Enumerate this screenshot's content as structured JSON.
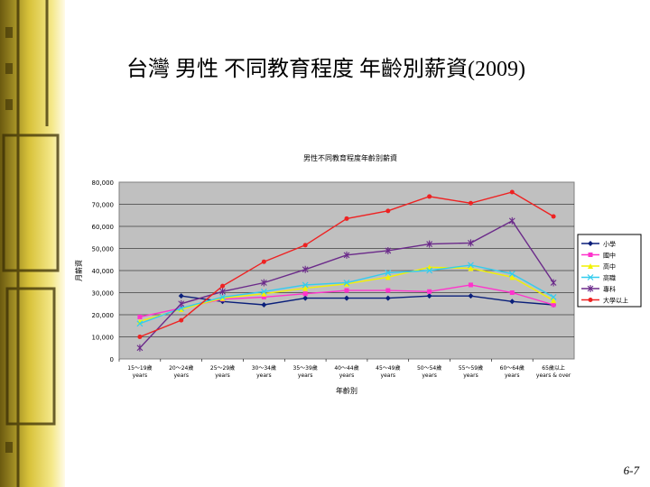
{
  "slide": {
    "title": "台灣 男性 不同教育程度 年齡別薪資(2009)",
    "page_number": "6-7"
  },
  "chart_data": {
    "type": "line",
    "title": "男性不同教育程度年齡別薪資",
    "xlabel": "年齡別",
    "ylabel": "月薪資",
    "ylim": [
      0,
      80000
    ],
    "yticks": [
      "0",
      "10,000",
      "20,000",
      "30,000",
      "40,000",
      "50,000",
      "60,000",
      "70,000",
      "80,000"
    ],
    "categories": [
      [
        "15～19歲",
        "years"
      ],
      [
        "20～24歲",
        "years"
      ],
      [
        "25～29歲",
        "years"
      ],
      [
        "30～34歲",
        "years"
      ],
      [
        "35～39歲",
        "years"
      ],
      [
        "40～44歲",
        "years"
      ],
      [
        "45～49歲",
        "years"
      ],
      [
        "50～54歲",
        "years"
      ],
      [
        "55～59歲",
        "years"
      ],
      [
        "60～64歲",
        "years"
      ],
      [
        "65歲以上",
        "years & over"
      ]
    ],
    "series": [
      {
        "name": "小學",
        "color": "#0a1f7a",
        "marker": "diamond",
        "values": [
          null,
          28500,
          26000,
          24500,
          27500,
          27500,
          27500,
          28500,
          28500,
          26000,
          24500
        ]
      },
      {
        "name": "國中",
        "color": "#ff33cc",
        "marker": "square",
        "values": [
          19000,
          23000,
          27000,
          28000,
          29500,
          31000,
          31000,
          30500,
          33500,
          30000,
          24500
        ]
      },
      {
        "name": "高中",
        "color": "#f2f200",
        "marker": "triangle",
        "values": [
          17000,
          22500,
          27500,
          29500,
          32000,
          34000,
          37000,
          41500,
          41000,
          37000,
          26500
        ]
      },
      {
        "name": "高職",
        "color": "#33ccee",
        "marker": "x",
        "values": [
          16000,
          23000,
          28000,
          30500,
          33500,
          34500,
          39000,
          40000,
          42500,
          38500,
          28000
        ]
      },
      {
        "name": "專科",
        "color": "#6b2a8a",
        "marker": "star",
        "values": [
          5000,
          25000,
          30500,
          34500,
          40500,
          47000,
          49000,
          52000,
          52500,
          62500,
          34500
        ]
      },
      {
        "name": "大學以上",
        "color": "#ee2222",
        "marker": "circle",
        "values": [
          10000,
          17500,
          33000,
          44000,
          51500,
          63500,
          67000,
          73500,
          70500,
          75500,
          64500
        ]
      }
    ],
    "grid": true,
    "legend": "right"
  }
}
